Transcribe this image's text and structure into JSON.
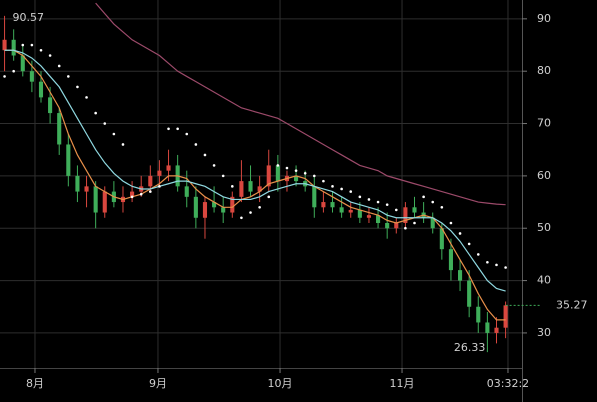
{
  "chart_data": {
    "type": "candlestick",
    "x": [
      0,
      1,
      2,
      3,
      4,
      5,
      6,
      7,
      8,
      9,
      10,
      11,
      12,
      13,
      14,
      15,
      16,
      17,
      18,
      19,
      20,
      21,
      22,
      23,
      24,
      25,
      26,
      27,
      28,
      29,
      30,
      31,
      32,
      33,
      34,
      35,
      36,
      37,
      38,
      39,
      40,
      41,
      42,
      43,
      44,
      45,
      46,
      47,
      48,
      49,
      50,
      51,
      52,
      53,
      54,
      55
    ],
    "open": [
      84,
      86,
      83,
      80,
      78,
      75,
      72,
      66,
      60,
      57,
      58,
      53,
      57,
      55,
      56,
      57,
      58,
      60,
      61,
      62,
      58,
      56,
      52,
      55,
      54,
      53,
      56,
      59,
      57,
      58,
      62,
      59,
      60,
      59,
      58,
      54,
      55,
      54,
      53,
      53.5,
      52,
      52.5,
      51,
      50,
      51,
      54,
      53,
      52,
      50,
      46,
      42,
      40,
      35,
      32,
      30,
      31
    ],
    "high": [
      90.57,
      88,
      85,
      82,
      80,
      77,
      73,
      68,
      62,
      60,
      59,
      58,
      59,
      58,
      59,
      60,
      62,
      63,
      65,
      64,
      61,
      58,
      56,
      58,
      56,
      57,
      63,
      62,
      60,
      65,
      64,
      61,
      62,
      61,
      60,
      57,
      57,
      56,
      55,
      55,
      54,
      54,
      53,
      52,
      55,
      56,
      55,
      53,
      51,
      48,
      44,
      42,
      37,
      34,
      33,
      36
    ],
    "low": [
      80,
      82,
      79,
      76,
      74,
      70,
      64,
      58,
      55,
      54,
      50,
      52,
      54,
      53,
      55,
      56,
      57,
      58,
      59,
      57,
      54,
      50,
      48,
      53,
      51,
      52,
      55,
      56,
      55,
      57,
      57,
      57,
      58,
      57,
      52,
      53,
      53,
      52,
      52,
      51,
      51,
      50,
      48,
      49,
      50,
      52,
      51,
      49,
      44,
      40,
      38,
      33,
      30,
      26.33,
      28,
      29
    ],
    "close": [
      86,
      83,
      80,
      78,
      75,
      72,
      66,
      60,
      57,
      58,
      53,
      57,
      55,
      56,
      57,
      58,
      60,
      61,
      62,
      58,
      56,
      52,
      55,
      54,
      53,
      56,
      59,
      57,
      58,
      62,
      59,
      60,
      59,
      58,
      54,
      55,
      54,
      53,
      53.5,
      52,
      52.5,
      51,
      50,
      51,
      54,
      53,
      52,
      50,
      46,
      42,
      40,
      35,
      32,
      30,
      31,
      35.27
    ],
    "up_color": "#d9473f",
    "down_color": "#3fae5a",
    "lines": [
      {
        "color": "#e8904a",
        "values": [
          84,
          84,
          83,
          81,
          79,
          76,
          73,
          68,
          64,
          61,
          58,
          57,
          56,
          55.5,
          56,
          56.5,
          57.5,
          58.5,
          60,
          60,
          59.5,
          57.5,
          56,
          55,
          54,
          54,
          55.5,
          56,
          57,
          58.5,
          59,
          59.5,
          60,
          59.5,
          58,
          57,
          56,
          55,
          54,
          53.5,
          53,
          52.5,
          51.5,
          51,
          51.5,
          52,
          52.5,
          52,
          50,
          47,
          44,
          41,
          37.5,
          34.5,
          32.5,
          32.5
        ]
      },
      {
        "color": "#8fd8e0",
        "values": [
          84,
          84,
          83.5,
          82.5,
          81,
          79,
          77,
          74,
          71,
          68,
          65,
          62.5,
          60.5,
          59,
          58,
          57.5,
          57.5,
          58,
          58.5,
          59,
          59,
          58.5,
          58,
          57,
          56,
          55.5,
          55.5,
          55.5,
          56,
          57,
          57.5,
          58,
          58.5,
          58.5,
          58,
          57.5,
          57,
          56,
          55,
          54.5,
          54,
          53.5,
          52.5,
          52,
          52,
          52,
          52,
          52,
          51,
          49.5,
          47.5,
          45,
          42.5,
          40,
          38.5,
          38
        ]
      },
      {
        "color": "#9c4a6a",
        "values": [
          null,
          null,
          null,
          null,
          null,
          null,
          null,
          null,
          null,
          null,
          93,
          91,
          89,
          87.5,
          86,
          85,
          84,
          83,
          81.5,
          80,
          79,
          78,
          77,
          76,
          75,
          74,
          73,
          72.5,
          72,
          71.5,
          71,
          70,
          69,
          68,
          67,
          66,
          65,
          64,
          63,
          62,
          61.5,
          61,
          60,
          59.5,
          59,
          58.5,
          58,
          57.5,
          57,
          56.5,
          56,
          55.5,
          55,
          54.8,
          54.6,
          54.5
        ]
      }
    ],
    "sar": {
      "color": "#ffffff",
      "values": [
        79,
        80,
        85,
        85,
        84,
        83,
        81,
        79,
        77,
        75,
        72,
        70,
        68,
        66,
        56,
        56.5,
        57,
        58,
        69,
        69,
        68,
        66,
        64,
        62,
        60,
        58,
        52,
        53,
        54,
        56,
        62,
        61.5,
        61,
        60.5,
        60,
        59,
        58,
        57.5,
        57,
        56,
        55.5,
        55,
        54.5,
        53.5,
        50,
        51,
        56,
        55,
        54,
        51,
        49,
        47,
        45,
        43.5,
        43,
        42.5
      ]
    },
    "last_color": "#3fae5a",
    "xlim": [
      -0.5,
      56.8
    ],
    "ylim": [
      23.3,
      93.6
    ],
    "yticks": [
      30,
      40,
      50,
      60,
      70,
      80,
      90
    ],
    "xticks": [
      {
        "value": 3.34,
        "label": "8月"
      },
      {
        "value": 16.84,
        "label": "9月"
      },
      {
        "value": 30.24,
        "label": "10月"
      },
      {
        "value": 43.63,
        "label": "11月"
      },
      {
        "value": 55.26,
        "label": "03:32:2"
      }
    ],
    "grid": true
  }
}
